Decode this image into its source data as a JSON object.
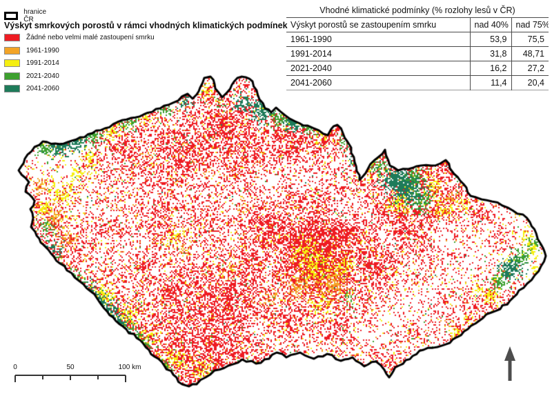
{
  "legend": {
    "boundary_label": "hranice ČR",
    "title": "Výskyt smrkových porostů v rámci vhodných klimatických podmínek",
    "items": [
      {
        "label": "Žádné nebo velmi malé zastoupení smrku",
        "color": "#ee1c23"
      },
      {
        "label": "1961-1990",
        "color": "#f3a427"
      },
      {
        "label": "1991-2014",
        "color": "#f5ef11"
      },
      {
        "label": "2021-2040",
        "color": "#3da02f"
      },
      {
        "label": "2041-2060",
        "color": "#1e7b5a"
      }
    ]
  },
  "table": {
    "title": "Vhodné klimatické podmínky (% rozlohy lesů v ČR)",
    "columns": [
      "Výskyt porostů se zastoupením smrku",
      "nad 40%",
      "nad 75%"
    ],
    "rows": [
      {
        "period": "1961-1990",
        "nad40": "53,9",
        "nad75": "75,5"
      },
      {
        "period": "1991-2014",
        "nad40": "31,8",
        "nad75": "48,71"
      },
      {
        "period": "2021-2040",
        "nad40": "16,2",
        "nad75": "27,2"
      },
      {
        "period": "2041-2060",
        "nad40": "11,4",
        "nad75": "20,4"
      }
    ]
  },
  "scale_bar": {
    "labels": [
      "0",
      "50",
      "100 km"
    ]
  },
  "map": {
    "land_color": "#ffffff",
    "border_color": "#000000",
    "north_arrow_color": "#4d4d4d"
  },
  "chart_data": {
    "type": "table",
    "title": "Vhodné klimatické podmínky (% rozlohy lesů v ČR)",
    "categories": [
      "1961-1990",
      "1991-2014",
      "2021-2040",
      "2041-2060"
    ],
    "series": [
      {
        "name": "nad 40%",
        "values": [
          53.9,
          31.8,
          16.2,
          11.4
        ]
      },
      {
        "name": "nad 75%",
        "values": [
          75.5,
          48.71,
          27.2,
          20.4
        ]
      }
    ]
  }
}
